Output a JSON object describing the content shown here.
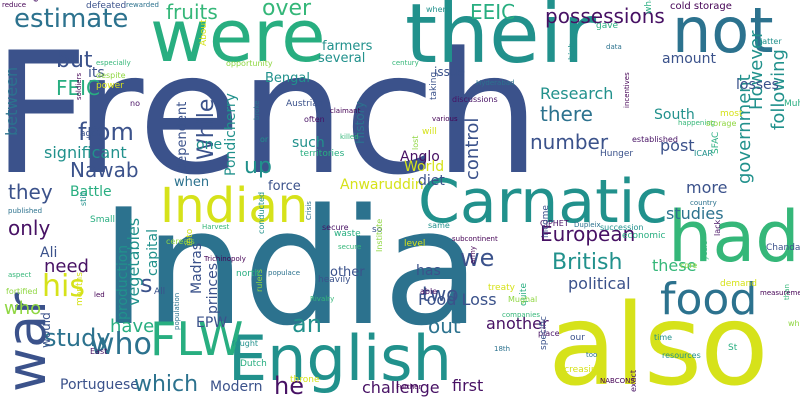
{
  "palette": {
    "navy": "#3b528b",
    "teal": "#21918c",
    "green": "#35b779",
    "lime": "#90d743",
    "yellow": "#d6e21a",
    "purple": "#471164",
    "blue": "#2c728e",
    "sea": "#28ae80",
    "dark": "#440154"
  },
  "words": {
    "french": "French",
    "india": "India",
    "also": "also",
    "were": "were",
    "their": "their",
    "not": "not",
    "had": "had",
    "carnatic": "Carnatic",
    "english": "English",
    "indian": "Indian",
    "war": "war",
    "flw": "FLW",
    "food": "food",
    "we": "we",
    "estimate": "estimate",
    "fruits": "fruits",
    "over": "over",
    "eeic": "EEIC",
    "possessions": "possessions",
    "cold_storage": "cold storage",
    "bengal": "Bengal",
    "farmers": "farmers",
    "feic": "FEIC",
    "but": "but",
    "its": "its",
    "between": "between",
    "from": "from",
    "who_small": "who",
    "significant": "significant",
    "nawab": "Nawab",
    "they": "they",
    "only": "only",
    "battle": "Battle",
    "ali": "Ali",
    "need": "need",
    "his": "his",
    "s": "s",
    "study": "study",
    "have": "have",
    "who_big": "who",
    "portuguese": "Portuguese",
    "which": "which",
    "modern": "Modern",
    "he": "he",
    "challenge": "challenge",
    "first": "first",
    "epw": "EPW",
    "an": "an",
    "out": "out",
    "another": "another",
    "food_loss": "Food Loss",
    "british": "British",
    "european": "European",
    "two": "two",
    "political": "political",
    "these": "these",
    "studies": "studies",
    "more": "more",
    "government": "government",
    "following": "following",
    "however": "However",
    "south": "South",
    "post": "post",
    "research": "Research",
    "number": "number",
    "there": "there",
    "amount": "amount",
    "losses": "losses",
    "issue": "issue",
    "anglo": "Anglo",
    "control": "control",
    "history": "History",
    "several": "several",
    "while": "While",
    "up": "up",
    "one": "one",
    "such": "such",
    "pondicherry": "Pondicherry",
    "force": "force",
    "anwaruddin": "Anwaruddin",
    "world": "World",
    "diet": "diet",
    "vegetables": "vegetables",
    "capital": "capital",
    "production": "production",
    "madras": "Madras",
    "princes": "princes",
    "other": "other",
    "has": "has",
    "dependent": "dependent",
    "when": "when",
    "would": "would",
    "small_words": [
      "reduce",
      "end",
      "defeated",
      "rewarded",
      "where",
      "what",
      "especially",
      "despite",
      "power",
      "soldiers",
      "no",
      "ago",
      "published",
      "still",
      "Small",
      "aspect",
      "fortified",
      "months",
      "led",
      "East",
      "All",
      "population",
      "fought",
      "Dutch",
      "Rivalry",
      "rulers",
      "throne",
      "Further",
      "place",
      "specific",
      "too",
      "time",
      "St",
      "than",
      "whether",
      "increasing",
      "NABCONS",
      "exact",
      "our",
      "18th",
      "resources",
      "quite",
      "companies",
      "Mughal",
      "treaty",
      "army",
      "able",
      "heavily",
      "populace",
      "conducted",
      "north",
      "Harvest",
      "cereals",
      "into",
      "Trichinopoly",
      "secure",
      "so",
      "Crisis",
      "same",
      "waste",
      "secure",
      "Institute",
      "level",
      "subcontinent",
      "CIPHET",
      "income",
      "Dupleix",
      "succession",
      "economic",
      "years",
      "core",
      "demand",
      "measurement",
      "lack",
      "Chanda Sahib",
      "country",
      "ICAR",
      "SFAC",
      "happening",
      "storage",
      "most",
      "incentives",
      "established",
      "Hunger",
      "data",
      "high",
      "gave",
      "century",
      "opportunity",
      "About",
      "claimant",
      "often",
      "Austrian",
      "broke",
      "or",
      "territories",
      "killed",
      "lost",
      "will",
      "various",
      "discussions",
      "taking",
      "Hyderabad",
      "latter",
      "Muhammed"
    ]
  }
}
